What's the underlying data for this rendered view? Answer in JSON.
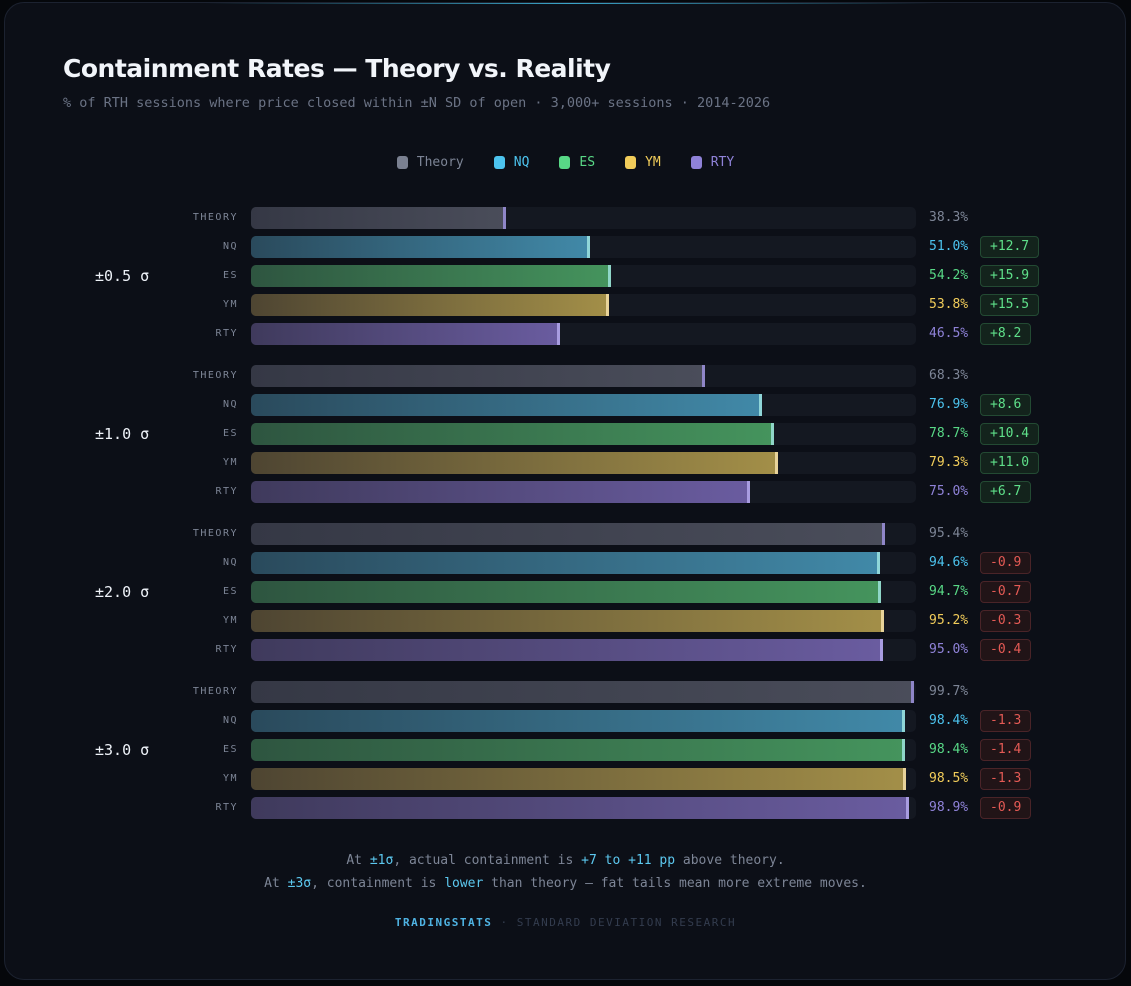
{
  "title": "Containment Rates — Theory vs. Reality",
  "subtitle": "% of RTH sessions where price closed within ±N SD of open · 3,000+ sessions · 2014-2026",
  "colors": {
    "Theory": "#7a8090",
    "NQ": "#4cc3ee",
    "ES": "#58d886",
    "YM": "#f1cc5a",
    "RTY": "#8f82d8"
  },
  "chart_data": {
    "type": "bar",
    "orientation": "horizontal",
    "title": "Containment Rates — Theory vs. Reality",
    "xlim": [
      0,
      100
    ],
    "unit": "%",
    "legend": [
      "Theory",
      "NQ",
      "ES",
      "YM",
      "RTY"
    ],
    "legend_placement": "top-center",
    "groups": [
      {
        "label": "±0.5 σ",
        "rows": [
          {
            "name": "THEORY",
            "series": "Theory",
            "value": 38.3,
            "value_label": "38.3%",
            "delta": null
          },
          {
            "name": "NQ",
            "series": "NQ",
            "value": 51.0,
            "value_label": "51.0%",
            "delta": "+12.7"
          },
          {
            "name": "ES",
            "series": "ES",
            "value": 54.2,
            "value_label": "54.2%",
            "delta": "+15.9"
          },
          {
            "name": "YM",
            "series": "YM",
            "value": 53.8,
            "value_label": "53.8%",
            "delta": "+15.5"
          },
          {
            "name": "RTY",
            "series": "RTY",
            "value": 46.5,
            "value_label": "46.5%",
            "delta": "+8.2"
          }
        ]
      },
      {
        "label": "±1.0 σ",
        "rows": [
          {
            "name": "THEORY",
            "series": "Theory",
            "value": 68.3,
            "value_label": "68.3%",
            "delta": null
          },
          {
            "name": "NQ",
            "series": "NQ",
            "value": 76.9,
            "value_label": "76.9%",
            "delta": "+8.6"
          },
          {
            "name": "ES",
            "series": "ES",
            "value": 78.7,
            "value_label": "78.7%",
            "delta": "+10.4"
          },
          {
            "name": "YM",
            "series": "YM",
            "value": 79.3,
            "value_label": "79.3%",
            "delta": "+11.0"
          },
          {
            "name": "RTY",
            "series": "RTY",
            "value": 75.0,
            "value_label": "75.0%",
            "delta": "+6.7"
          }
        ]
      },
      {
        "label": "±2.0 σ",
        "rows": [
          {
            "name": "THEORY",
            "series": "Theory",
            "value": 95.4,
            "value_label": "95.4%",
            "delta": null
          },
          {
            "name": "NQ",
            "series": "NQ",
            "value": 94.6,
            "value_label": "94.6%",
            "delta": "-0.9"
          },
          {
            "name": "ES",
            "series": "ES",
            "value": 94.7,
            "value_label": "94.7%",
            "delta": "-0.7"
          },
          {
            "name": "YM",
            "series": "YM",
            "value": 95.2,
            "value_label": "95.2%",
            "delta": "-0.3"
          },
          {
            "name": "RTY",
            "series": "RTY",
            "value": 95.0,
            "value_label": "95.0%",
            "delta": "-0.4"
          }
        ]
      },
      {
        "label": "±3.0 σ",
        "rows": [
          {
            "name": "THEORY",
            "series": "Theory",
            "value": 99.7,
            "value_label": "99.7%",
            "delta": null
          },
          {
            "name": "NQ",
            "series": "NQ",
            "value": 98.4,
            "value_label": "98.4%",
            "delta": "-1.3"
          },
          {
            "name": "ES",
            "series": "ES",
            "value": 98.4,
            "value_label": "98.4%",
            "delta": "-1.4"
          },
          {
            "name": "YM",
            "series": "YM",
            "value": 98.5,
            "value_label": "98.5%",
            "delta": "-1.3"
          },
          {
            "name": "RTY",
            "series": "RTY",
            "value": 98.9,
            "value_label": "98.9%",
            "delta": "-0.9"
          }
        ]
      }
    ]
  },
  "notes": {
    "line1": {
      "a": "At ",
      "b": "±1σ",
      "c": ", actual containment is ",
      "d": "+7 to +11 pp",
      "e": " above theory."
    },
    "line2": {
      "a": "At ",
      "b": "±3σ",
      "c": ", containment is ",
      "d": "lower",
      "e": " than theory — fat tails mean more extreme moves."
    }
  },
  "footer": {
    "brand": "TRADINGSTATS",
    "sep": " · ",
    "tagline": "STANDARD DEVIATION RESEARCH"
  }
}
